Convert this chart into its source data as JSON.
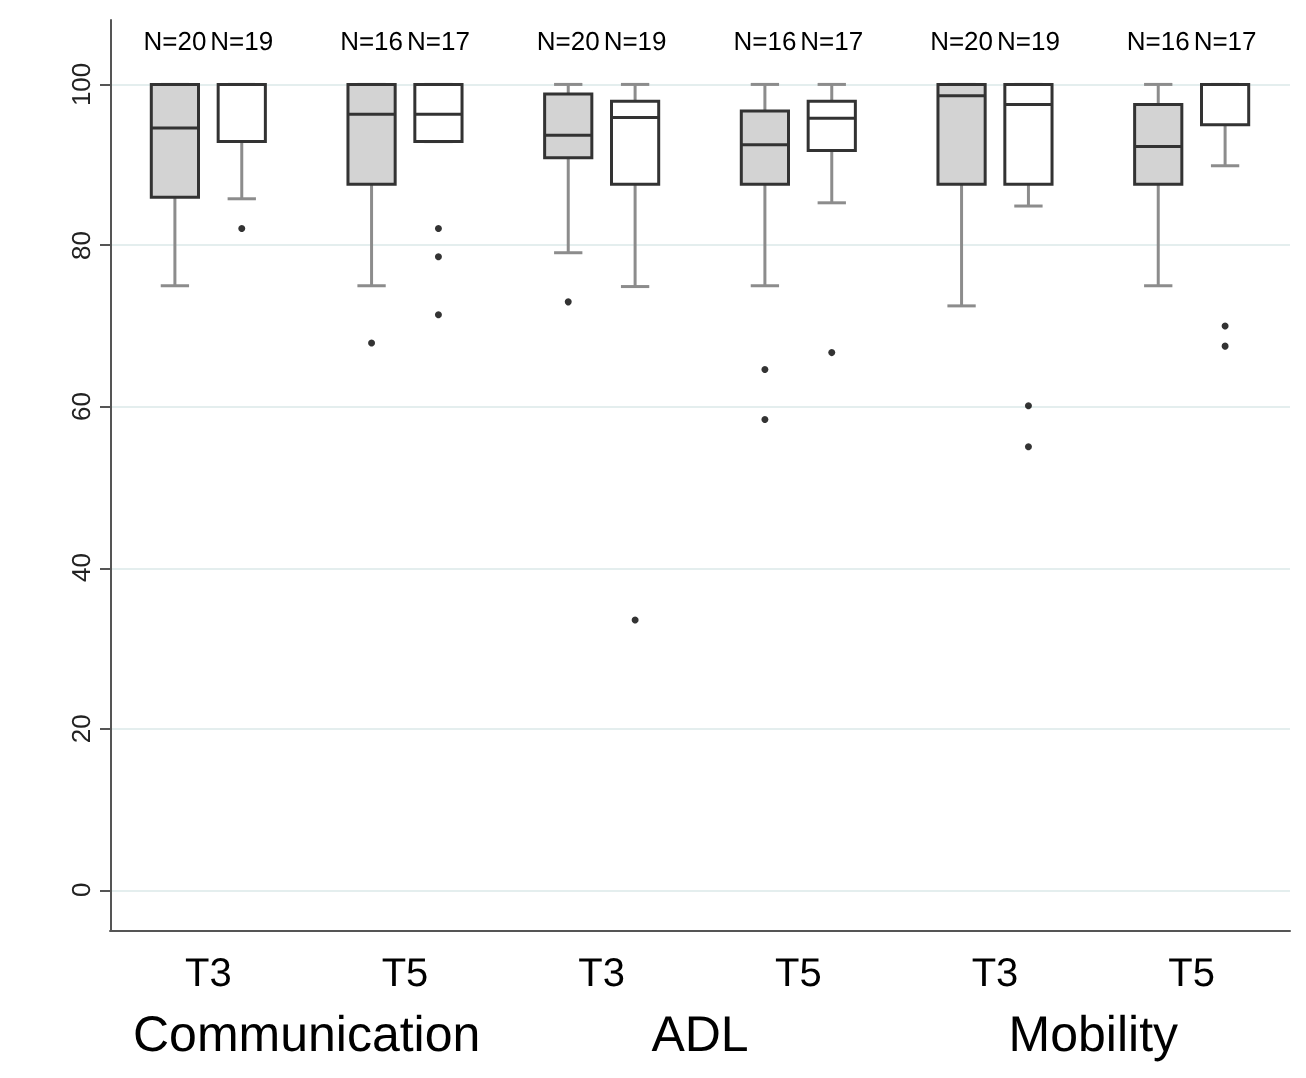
{
  "chart_data": {
    "type": "box",
    "categories": [
      "T3",
      "T5",
      "T3",
      "T5",
      "T3",
      "T5"
    ],
    "series": [
      {
        "color": "#d3d3d3",
        "boxes": [
          {
            "low": 75,
            "q1": 86,
            "median": 94.6,
            "q3": 100,
            "high": 100
          },
          {
            "low": 75,
            "q1": 87.6,
            "median": 96.3,
            "q3": 100,
            "high": 100,
            "outliers": [
              67.9
            ]
          },
          {
            "low": 79.1,
            "q1": 90.9,
            "median": 93.7,
            "q3": 98.8,
            "high": 100,
            "outliers": [
              73
            ]
          },
          {
            "low": 75,
            "q1": 87.6,
            "median": 92.5,
            "q3": 96.7,
            "high": 100,
            "outliers": [
              64.6,
              58.4
            ]
          },
          {
            "low": 72.5,
            "q1": 87.6,
            "median": 98.6,
            "q3": 100,
            "high": 100
          },
          {
            "low": 75,
            "q1": 87.6,
            "median": 92.3,
            "q3": 97.5,
            "high": 100
          }
        ]
      },
      {
        "color": "#ffffff",
        "boxes": [
          {
            "low": 85.8,
            "q1": 92.9,
            "median": 100,
            "q3": 100,
            "high": 100,
            "outliers": [
              82.1
            ]
          },
          {
            "low": 92.9,
            "q1": 92.9,
            "median": 96.3,
            "q3": 100,
            "high": 100,
            "outliers": [
              82.1,
              78.6,
              71.4
            ]
          },
          {
            "low": 74.9,
            "q1": 87.6,
            "median": 95.9,
            "q3": 97.9,
            "high": 100,
            "outliers": [
              33.5
            ]
          },
          {
            "low": 85.3,
            "q1": 91.8,
            "median": 95.8,
            "q3": 97.9,
            "high": 100,
            "outliers": [
              66.7
            ]
          },
          {
            "low": 84.9,
            "q1": 87.6,
            "median": 97.5,
            "q3": 100,
            "high": 100,
            "outliers": [
              60.1,
              55
            ]
          },
          {
            "low": 89.9,
            "q1": 95,
            "median": 100,
            "q3": 100,
            "high": 100,
            "outliers": [
              70,
              67.5
            ]
          }
        ]
      }
    ],
    "annotations": [
      "N=20",
      "N=19",
      "N=16",
      "N=17",
      "N=20",
      "N=19",
      "N=16",
      "N=17",
      "N=20",
      "N=19",
      "N=16",
      "N=17",
      "Communication",
      "ADL",
      "Mobility"
    ],
    "ylim": [
      -5,
      108
    ],
    "yticks": [
      0,
      20,
      40,
      60,
      80,
      100
    ],
    "grid": "y",
    "marker": "circle"
  }
}
